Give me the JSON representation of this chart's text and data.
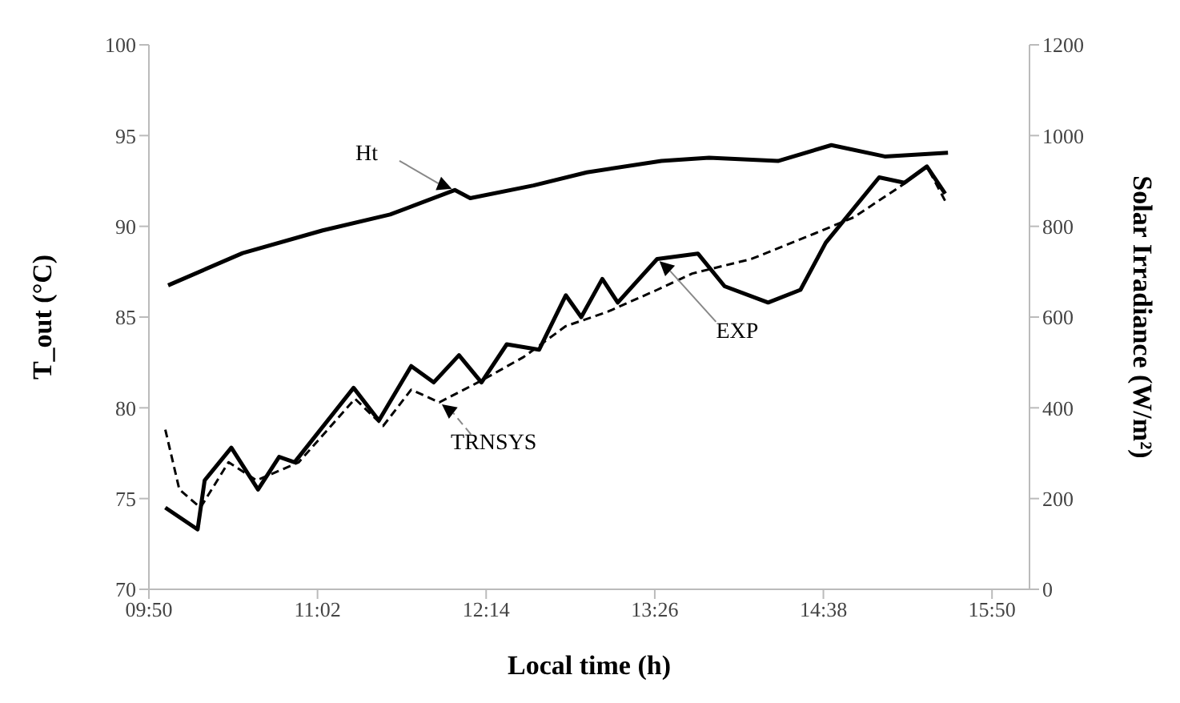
{
  "chart_data": {
    "type": "line",
    "xlabel": "Local time (h)",
    "ylabel": "T_out (°C)",
    "y2label": "Solar Irradiance (W/m²)",
    "xlim": [
      9.8333,
      16.1
    ],
    "xticks": [
      {
        "value": 9.8333,
        "label": "09:50"
      },
      {
        "value": 11.0333,
        "label": "11:02"
      },
      {
        "value": 12.2333,
        "label": "12:14"
      },
      {
        "value": 13.4333,
        "label": "13:26"
      },
      {
        "value": 14.6333,
        "label": "14:38"
      },
      {
        "value": 15.8333,
        "label": "15:50"
      }
    ],
    "ylim": [
      70,
      100
    ],
    "yticks": [
      70,
      75,
      80,
      85,
      90,
      95,
      100
    ],
    "y2lim": [
      0,
      1200
    ],
    "y2ticks": [
      0,
      200,
      400,
      600,
      800,
      1000,
      1200
    ],
    "grid": false,
    "series": [
      {
        "name": "Ht",
        "color": "#000000",
        "axis": "y2",
        "line_style": "solid",
        "x": [
          9.97,
          10.5,
          11.07,
          11.55,
          12.01,
          12.12,
          12.57,
          12.95,
          13.48,
          13.82,
          14.31,
          14.69,
          15.07,
          15.52
        ],
        "values": [
          670,
          741,
          791,
          826,
          880,
          862,
          890,
          919,
          944,
          951,
          944,
          979,
          954,
          962
        ]
      },
      {
        "name": "TRNSYS",
        "color": "#000000",
        "line_style": "dashed",
        "x": [
          9.95,
          10.05,
          10.2,
          10.4,
          10.6,
          10.9,
          11.3,
          11.5,
          11.7,
          11.9,
          12.2,
          12.5,
          12.8,
          13.1,
          13.45,
          13.7,
          14.12,
          14.57,
          14.85,
          15.2,
          15.37,
          15.5
        ],
        "values": [
          78.8,
          75.5,
          74.5,
          77,
          76,
          77,
          80.5,
          79,
          81,
          80.3,
          81.5,
          82.8,
          84.5,
          85.3,
          86.5,
          87.4,
          88.2,
          89.6,
          90.5,
          92.3,
          93.3,
          91.4
        ]
      },
      {
        "name": "EXP",
        "color": "#000000",
        "line_style": "solid",
        "x": [
          9.95,
          10.18,
          10.23,
          10.42,
          10.61,
          10.76,
          10.87,
          11.29,
          11.47,
          11.7,
          11.86,
          12.04,
          12.2,
          12.38,
          12.61,
          12.8,
          12.91,
          13.06,
          13.17,
          13.45,
          13.74,
          13.93,
          14.24,
          14.47,
          14.65,
          14.84,
          15.03,
          15.21,
          15.37,
          15.5
        ],
        "values": [
          74.5,
          73.3,
          76,
          77.8,
          75.5,
          77.3,
          77,
          81.1,
          79.3,
          82.3,
          81.4,
          82.9,
          81.4,
          83.5,
          83.2,
          86.2,
          85,
          87.1,
          85.8,
          88.2,
          88.5,
          86.7,
          85.8,
          86.5,
          89.1,
          90.9,
          92.7,
          92.4,
          93.3,
          91.8
        ]
      }
    ]
  }
}
